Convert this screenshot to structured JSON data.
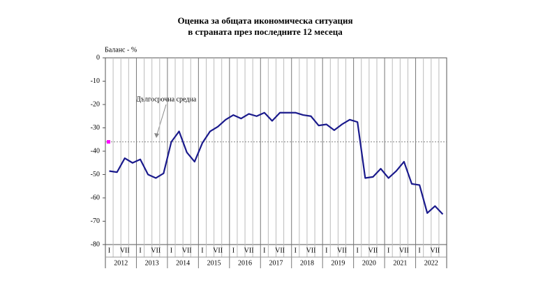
{
  "chart_data": {
    "type": "line",
    "title": [
      "Оценка за общата икономическа ситуация",
      "в страната през последните 12 месеца"
    ],
    "y_label": "Баланс - %",
    "categories": [
      "I",
      null,
      "VII",
      null,
      "I",
      null,
      "VII",
      null,
      "I",
      null,
      "VII",
      null,
      "I",
      null,
      "VII",
      null,
      "I",
      null,
      "VII",
      null,
      "I",
      null,
      "VII",
      null,
      "I",
      null,
      "VII",
      null,
      "I",
      null,
      "VII",
      null,
      "I",
      null,
      "VII",
      null,
      "I",
      null,
      "VII",
      null,
      "I",
      null,
      "VII",
      null
    ],
    "years": [
      "2012",
      "2013",
      "2014",
      "2015",
      "2016",
      "2017",
      "2018",
      "2019",
      "2020",
      "2021",
      "2022"
    ],
    "series": [
      {
        "name": "Баланс",
        "color": "#1a1a8c",
        "values": [
          -48.5,
          -49,
          -43,
          -45,
          -43.5,
          -50,
          -51.5,
          -49.5,
          -36,
          -31.5,
          -40.5,
          -44.5,
          -36.5,
          -31.5,
          -29.5,
          -26.5,
          -24.5,
          -26,
          -24,
          -25,
          -23.5,
          -27,
          -23.5,
          -23.5,
          -23.5,
          -24.5,
          -25,
          -29,
          -28.5,
          -31,
          -28.5,
          -26.5,
          -27.5,
          -51.5,
          -51,
          -47.5,
          -51.5,
          -48.5,
          -44.5,
          -54,
          -54.5,
          -66.5,
          -63.5,
          -67
        ]
      }
    ],
    "average": {
      "label": "Дългосрочна средна",
      "value": -36,
      "color": "#ff00ff"
    },
    "ylim": [
      -80,
      0
    ],
    "yticks": [
      0,
      -10,
      -20,
      -30,
      -40,
      -50,
      -60,
      -70,
      -80
    ],
    "grid": true
  }
}
